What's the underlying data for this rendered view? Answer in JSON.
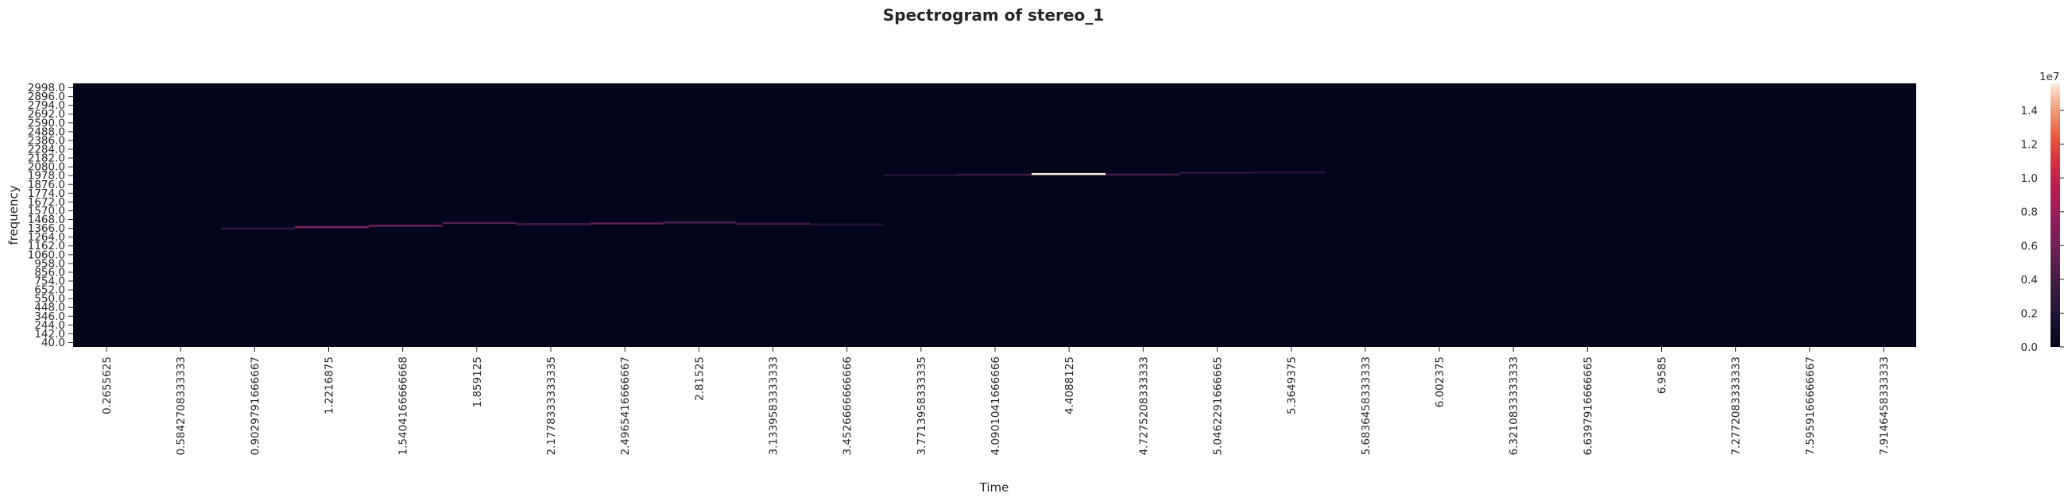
{
  "chart_data": {
    "type": "heatmap",
    "title": "Spectrogram of stereo_1",
    "xlabel": "Time",
    "ylabel": "frequency",
    "colorbar": {
      "offset_label": "1e7",
      "ticks": [
        "0.0",
        "0.2",
        "0.4",
        "0.6",
        "0.8",
        "1.0",
        "1.2",
        "1.4"
      ],
      "tick_values": [
        0,
        0.2,
        0.4,
        0.6,
        0.8,
        1.0,
        1.2,
        1.4
      ],
      "range": [
        0,
        1.56
      ],
      "colormap": "rocket"
    },
    "x_ticks": [
      "0.2655625",
      "0.5842708333333",
      "0.9029791666667",
      "1.2216875",
      "1.5404166666668",
      "1.859125",
      "2.1778333333335",
      "2.4965416666667",
      "2.81525",
      "3.1339583333333",
      "3.4526666666666",
      "3.7713958333335",
      "4.0901041666666",
      "4.4088125",
      "4.7275208333333",
      "5.0462291666665",
      "5.3649375",
      "5.6836458333333",
      "6.002375",
      "6.3210833333333",
      "6.6397916666665",
      "6.9585",
      "7.2772083333333",
      "7.5959166666667",
      "7.9146458333333"
    ],
    "y_ticks": [
      "2998.0",
      "2896.0",
      "2794.0",
      "2692.0",
      "2590.0",
      "2488.0",
      "2386.0",
      "2284.0",
      "2182.0",
      "2080.0",
      "1978.0",
      "1876.0",
      "1774.0",
      "1672.0",
      "1570.0",
      "1468.0",
      "1366.0",
      "1264.0",
      "1162.0",
      "1060.0",
      "958.0",
      "856.0",
      "754.0",
      "652.0",
      "550.0",
      "448.0",
      "346.0",
      "244.0",
      "142.0",
      "40.0"
    ],
    "ylim": [
      40,
      2998
    ],
    "xlim": [
      0.1,
      8.08
    ],
    "background_value": 0,
    "segments": [
      {
        "t0": 0.74,
        "t1": 1.06,
        "freq": 1366,
        "value": 3000000
      },
      {
        "t0": 1.06,
        "t1": 1.38,
        "freq": 1382,
        "value": 6500000
      },
      {
        "t0": 1.38,
        "t1": 1.7,
        "freq": 1398,
        "value": 5800000
      },
      {
        "t0": 1.7,
        "t1": 2.02,
        "freq": 1428,
        "value": 4500000
      },
      {
        "t0": 2.02,
        "t1": 2.34,
        "freq": 1415,
        "value": 4200000
      },
      {
        "t0": 2.34,
        "t1": 2.66,
        "freq": 1424,
        "value": 4800000
      },
      {
        "t0": 2.66,
        "t1": 2.97,
        "freq": 1434,
        "value": 4400000
      },
      {
        "t0": 2.97,
        "t1": 3.29,
        "freq": 1420,
        "value": 3800000
      },
      {
        "t0": 3.29,
        "t1": 3.61,
        "freq": 1412,
        "value": 2000000
      },
      {
        "t0": 3.61,
        "t1": 3.93,
        "freq": 1964,
        "value": 2200000
      },
      {
        "t0": 3.93,
        "t1": 4.25,
        "freq": 1970,
        "value": 3600000
      },
      {
        "t0": 4.25,
        "t1": 4.57,
        "freq": 1978,
        "value": 15500000
      },
      {
        "t0": 4.57,
        "t1": 4.89,
        "freq": 1972,
        "value": 4000000
      },
      {
        "t0": 4.89,
        "t1": 5.21,
        "freq": 1992,
        "value": 2600000
      },
      {
        "t0": 5.21,
        "t1": 5.52,
        "freq": 1996,
        "value": 2300000
      }
    ]
  }
}
